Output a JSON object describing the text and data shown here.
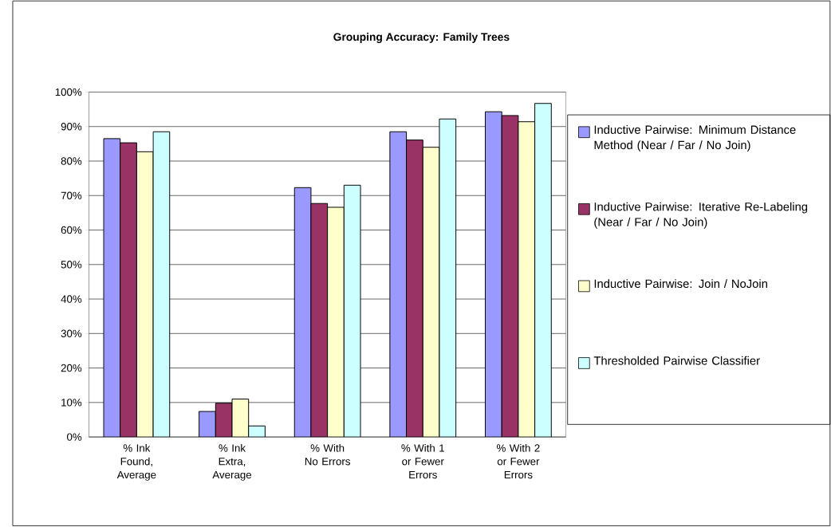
{
  "chart_data": {
    "type": "bar",
    "title": "Grouping Accuracy: Family Trees",
    "categories": [
      "% Ink Found, Average",
      "% Ink Extra, Average",
      "% With No Errors",
      "% With 1 or Fewer Errors",
      "% With 2 or Fewer Errors"
    ],
    "series": [
      {
        "name": "Inductive Pairwise: Minimum Distance Method (Near / Far / No Join)",
        "color": "#9999ff",
        "values": [
          86.5,
          7.4,
          72.3,
          88.5,
          94.3
        ]
      },
      {
        "name": "Inductive Pairwise: Iterative Re-Labeling (Near / Far / No Join)",
        "color": "#993366",
        "values": [
          85.3,
          9.8,
          67.7,
          86.1,
          93.2
        ]
      },
      {
        "name": "Inductive Pairwise: Join / NoJoin",
        "color": "#ffffcc",
        "values": [
          82.7,
          11.0,
          66.6,
          84.0,
          91.4
        ]
      },
      {
        "name": "Thresholded Pairwise Classifier",
        "color": "#ccffff",
        "values": [
          88.5,
          3.2,
          73.0,
          92.2,
          96.7
        ]
      }
    ],
    "ylim": [
      0,
      100
    ],
    "yticks": [
      {
        "value": 0,
        "label": "0%"
      },
      {
        "value": 10,
        "label": "10%"
      },
      {
        "value": 20,
        "label": "20%"
      },
      {
        "value": 30,
        "label": "30%"
      },
      {
        "value": 40,
        "label": "40%"
      },
      {
        "value": 50,
        "label": "50%"
      },
      {
        "value": 60,
        "label": "60%"
      },
      {
        "value": 70,
        "label": "70%"
      },
      {
        "value": 80,
        "label": "80%"
      },
      {
        "value": 90,
        "label": "90%"
      },
      {
        "value": 100,
        "label": "100%"
      }
    ],
    "grid": "y",
    "legend": "right"
  }
}
